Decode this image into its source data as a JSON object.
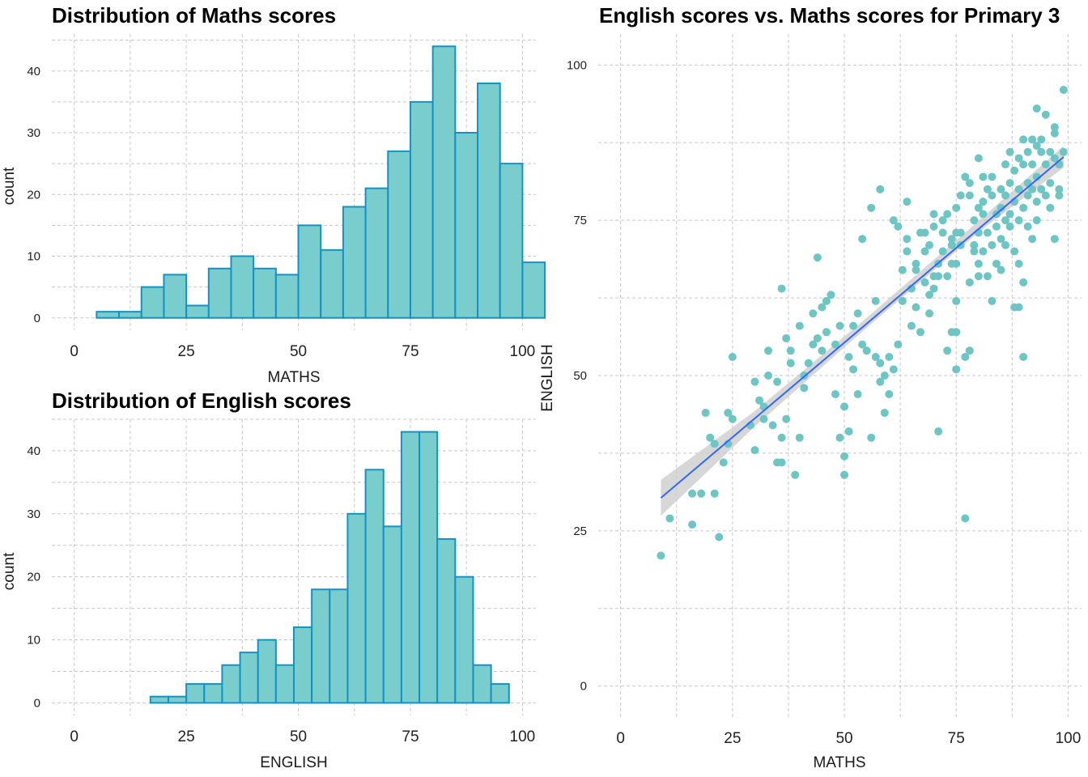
{
  "colors": {
    "bar_fill": "#79cdcd",
    "bar_stroke": "#1592c4",
    "point": "#6ec6c4",
    "fit_line": "#3366ff",
    "ribbon": "#c9c9c9",
    "grid": "#c8c8c8"
  },
  "chart_data": [
    {
      "type": "bar",
      "title": "Distribution of Maths scores",
      "xlabel": "MATHS",
      "ylabel": "count",
      "xlim": [
        -5,
        103
      ],
      "ylim": [
        -2,
        46
      ],
      "x_ticks": [
        0,
        25,
        50,
        75,
        100
      ],
      "y_ticks": [
        0,
        10,
        20,
        30,
        40
      ],
      "grid": true,
      "bin_width": 5,
      "bins": [
        {
          "x0": 5,
          "x1": 10,
          "count": 1
        },
        {
          "x0": 10,
          "x1": 15,
          "count": 1
        },
        {
          "x0": 15,
          "x1": 20,
          "count": 5
        },
        {
          "x0": 20,
          "x1": 25,
          "count": 7
        },
        {
          "x0": 25,
          "x1": 30,
          "count": 2
        },
        {
          "x0": 30,
          "x1": 35,
          "count": 8
        },
        {
          "x0": 35,
          "x1": 40,
          "count": 10
        },
        {
          "x0": 40,
          "x1": 45,
          "count": 8
        },
        {
          "x0": 45,
          "x1": 50,
          "count": 7
        },
        {
          "x0": 50,
          "x1": 55,
          "count": 15
        },
        {
          "x0": 55,
          "x1": 60,
          "count": 11
        },
        {
          "x0": 60,
          "x1": 65,
          "count": 18
        },
        {
          "x0": 65,
          "x1": 70,
          "count": 21
        },
        {
          "x0": 70,
          "x1": 75,
          "count": 27
        },
        {
          "x0": 75,
          "x1": 80,
          "count": 35
        },
        {
          "x0": 80,
          "x1": 85,
          "count": 44
        },
        {
          "x0": 85,
          "x1": 90,
          "count": 30
        },
        {
          "x0": 90,
          "x1": 95,
          "count": 38
        },
        {
          "x0": 95,
          "x1": 100,
          "count": 25
        },
        {
          "x0": 100,
          "x1": 105,
          "count": 9
        }
      ]
    },
    {
      "type": "bar",
      "title": "Distribution of English scores",
      "xlabel": "ENGLISH",
      "ylabel": "count",
      "xlim": [
        -5,
        103
      ],
      "ylim": [
        -2,
        45
      ],
      "x_ticks": [
        0,
        25,
        50,
        75,
        100
      ],
      "y_ticks": [
        0,
        10,
        20,
        30,
        40
      ],
      "grid": true,
      "bin_width": 4,
      "bins": [
        {
          "x0": 17,
          "x1": 21,
          "count": 1
        },
        {
          "x0": 21,
          "x1": 25,
          "count": 1
        },
        {
          "x0": 25,
          "x1": 29,
          "count": 3
        },
        {
          "x0": 29,
          "x1": 33,
          "count": 3
        },
        {
          "x0": 33,
          "x1": 37,
          "count": 6
        },
        {
          "x0": 37,
          "x1": 41,
          "count": 8
        },
        {
          "x0": 41,
          "x1": 45,
          "count": 10
        },
        {
          "x0": 45,
          "x1": 49,
          "count": 6
        },
        {
          "x0": 49,
          "x1": 53,
          "count": 12
        },
        {
          "x0": 53,
          "x1": 57,
          "count": 18
        },
        {
          "x0": 57,
          "x1": 61,
          "count": 18
        },
        {
          "x0": 61,
          "x1": 65,
          "count": 30
        },
        {
          "x0": 65,
          "x1": 69,
          "count": 37
        },
        {
          "x0": 69,
          "x1": 73,
          "count": 28
        },
        {
          "x0": 73,
          "x1": 77,
          "count": 43
        },
        {
          "x0": 77,
          "x1": 81,
          "count": 43
        },
        {
          "x0": 81,
          "x1": 85,
          "count": 26
        },
        {
          "x0": 85,
          "x1": 89,
          "count": 20
        },
        {
          "x0": 89,
          "x1": 93,
          "count": 6
        },
        {
          "x0": 93,
          "x1": 97,
          "count": 3
        }
      ]
    },
    {
      "type": "scatter",
      "title": "English scores vs. Maths scores for Primary 3",
      "xlabel": "MATHS",
      "ylabel": "ENGLISH",
      "xlim": [
        -5,
        103
      ],
      "ylim": [
        -5,
        105
      ],
      "x_ticks": [
        0,
        25,
        50,
        75,
        100
      ],
      "y_ticks": [
        0,
        25,
        50,
        75,
        100
      ],
      "grid": true,
      "fit": {
        "method": "linear",
        "x": [
          9,
          99
        ],
        "y": [
          30.3,
          85.2
        ],
        "se_band": [
          [
            9,
            27.4,
            33.2
          ],
          [
            30,
            41.8,
            44.3
          ],
          [
            55,
            57.7,
            59.3
          ],
          [
            80,
            73.1,
            74.9
          ],
          [
            99,
            83.5,
            87.0
          ]
        ]
      },
      "points": [
        [
          9,
          21
        ],
        [
          11,
          27
        ],
        [
          16,
          26
        ],
        [
          16,
          31
        ],
        [
          18,
          31
        ],
        [
          19,
          44
        ],
        [
          20,
          40
        ],
        [
          21,
          39
        ],
        [
          21,
          31
        ],
        [
          22,
          24
        ],
        [
          23,
          36
        ],
        [
          24,
          39
        ],
        [
          24,
          44
        ],
        [
          25,
          43
        ],
        [
          25,
          53
        ],
        [
          29,
          42
        ],
        [
          30,
          38
        ],
        [
          30,
          49
        ],
        [
          31,
          46
        ],
        [
          32,
          45
        ],
        [
          32,
          43
        ],
        [
          33,
          50
        ],
        [
          33,
          54
        ],
        [
          34,
          42
        ],
        [
          35,
          49
        ],
        [
          35,
          36
        ],
        [
          36,
          36
        ],
        [
          36,
          40
        ],
        [
          36,
          64
        ],
        [
          37,
          43
        ],
        [
          37,
          56
        ],
        [
          38,
          54
        ],
        [
          38,
          52
        ],
        [
          39,
          34
        ],
        [
          40,
          58
        ],
        [
          40,
          40
        ],
        [
          41,
          48
        ],
        [
          41,
          50
        ],
        [
          42,
          52
        ],
        [
          43,
          60
        ],
        [
          43,
          55
        ],
        [
          44,
          56
        ],
        [
          44,
          69
        ],
        [
          45,
          61
        ],
        [
          45,
          54
        ],
        [
          46,
          62
        ],
        [
          46,
          57
        ],
        [
          47,
          63
        ],
        [
          48,
          55
        ],
        [
          48,
          47
        ],
        [
          49,
          58
        ],
        [
          49,
          40
        ],
        [
          50,
          37
        ],
        [
          50,
          34
        ],
        [
          50,
          45
        ],
        [
          51,
          53
        ],
        [
          51,
          41
        ],
        [
          52,
          58
        ],
        [
          52,
          51
        ],
        [
          53,
          47
        ],
        [
          53,
          60
        ],
        [
          54,
          72
        ],
        [
          54,
          55
        ],
        [
          55,
          54
        ],
        [
          56,
          40
        ],
        [
          56,
          77
        ],
        [
          57,
          53
        ],
        [
          57,
          62
        ],
        [
          58,
          49
        ],
        [
          58,
          80
        ],
        [
          58,
          52
        ],
        [
          59,
          44
        ],
        [
          59,
          50
        ],
        [
          60,
          47
        ],
        [
          60,
          53
        ],
        [
          61,
          51
        ],
        [
          61,
          75
        ],
        [
          62,
          55
        ],
        [
          62,
          74
        ],
        [
          63,
          62
        ],
        [
          63,
          67
        ],
        [
          64,
          72
        ],
        [
          64,
          70
        ],
        [
          64,
          78
        ],
        [
          65,
          58
        ],
        [
          65,
          64
        ],
        [
          66,
          67
        ],
        [
          66,
          61
        ],
        [
          66,
          68
        ],
        [
          67,
          73
        ],
        [
          67,
          57
        ],
        [
          68,
          70
        ],
        [
          68,
          65
        ],
        [
          68,
          73
        ],
        [
          69,
          71
        ],
        [
          69,
          60
        ],
        [
          69,
          63
        ],
        [
          70,
          66
        ],
        [
          70,
          74
        ],
        [
          70,
          76
        ],
        [
          70,
          64
        ],
        [
          71,
          68
        ],
        [
          71,
          41
        ],
        [
          71,
          66
        ],
        [
          72,
          70
        ],
        [
          72,
          73
        ],
        [
          72,
          75
        ],
        [
          73,
          76
        ],
        [
          73,
          66
        ],
        [
          73,
          54
        ],
        [
          74,
          71
        ],
        [
          74,
          68
        ],
        [
          74,
          57
        ],
        [
          74,
          72
        ],
        [
          75,
          73
        ],
        [
          75,
          62
        ],
        [
          75,
          51
        ],
        [
          75,
          57
        ],
        [
          75,
          77
        ],
        [
          75,
          68
        ],
        [
          76,
          79
        ],
        [
          76,
          71
        ],
        [
          76,
          73
        ],
        [
          77,
          82
        ],
        [
          77,
          53
        ],
        [
          77,
          27
        ],
        [
          78,
          81
        ],
        [
          78,
          65
        ],
        [
          78,
          54
        ],
        [
          78,
          79
        ],
        [
          79,
          70
        ],
        [
          79,
          75
        ],
        [
          79,
          71
        ],
        [
          80,
          77
        ],
        [
          80,
          73
        ],
        [
          80,
          68
        ],
        [
          80,
          85
        ],
        [
          80,
          66
        ],
        [
          81,
          76
        ],
        [
          81,
          70
        ],
        [
          81,
          82
        ],
        [
          81,
          78
        ],
        [
          82,
          80
        ],
        [
          82,
          73
        ],
        [
          82,
          66
        ],
        [
          83,
          79
        ],
        [
          83,
          71
        ],
        [
          83,
          82
        ],
        [
          83,
          62
        ],
        [
          84,
          76
        ],
        [
          84,
          74
        ],
        [
          84,
          68
        ],
        [
          85,
          80
        ],
        [
          85,
          77
        ],
        [
          85,
          72
        ],
        [
          85,
          67
        ],
        [
          86,
          79
        ],
        [
          86,
          84
        ],
        [
          86,
          75
        ],
        [
          86,
          71
        ],
        [
          87,
          81
        ],
        [
          87,
          76
        ],
        [
          87,
          86
        ],
        [
          87,
          74
        ],
        [
          88,
          70
        ],
        [
          88,
          78
        ],
        [
          88,
          83
        ],
        [
          88,
          61
        ],
        [
          89,
          85
        ],
        [
          89,
          80
        ],
        [
          89,
          75
        ],
        [
          89,
          68
        ],
        [
          90,
          88
        ],
        [
          90,
          84
        ],
        [
          90,
          77
        ],
        [
          90,
          65
        ],
        [
          90,
          53
        ],
        [
          91,
          86
        ],
        [
          91,
          81
        ],
        [
          91,
          79
        ],
        [
          91,
          74
        ],
        [
          92,
          88
        ],
        [
          92,
          84
        ],
        [
          92,
          80
        ],
        [
          92,
          72
        ],
        [
          93,
          87
        ],
        [
          93,
          82
        ],
        [
          93,
          78
        ],
        [
          93,
          75
        ],
        [
          94,
          88
        ],
        [
          94,
          86
        ],
        [
          94,
          80
        ],
        [
          95,
          92
        ],
        [
          95,
          84
        ],
        [
          95,
          79
        ],
        [
          96,
          86
        ],
        [
          96,
          81
        ],
        [
          96,
          77
        ],
        [
          97,
          89
        ],
        [
          97,
          90
        ],
        [
          97,
          85
        ],
        [
          97,
          72
        ],
        [
          98,
          84
        ],
        [
          98,
          79
        ],
        [
          99,
          96
        ],
        [
          99,
          86
        ],
        [
          98,
          80
        ],
        [
          89,
          61
        ],
        [
          93,
          93
        ],
        [
          94,
          80
        ]
      ]
    }
  ]
}
